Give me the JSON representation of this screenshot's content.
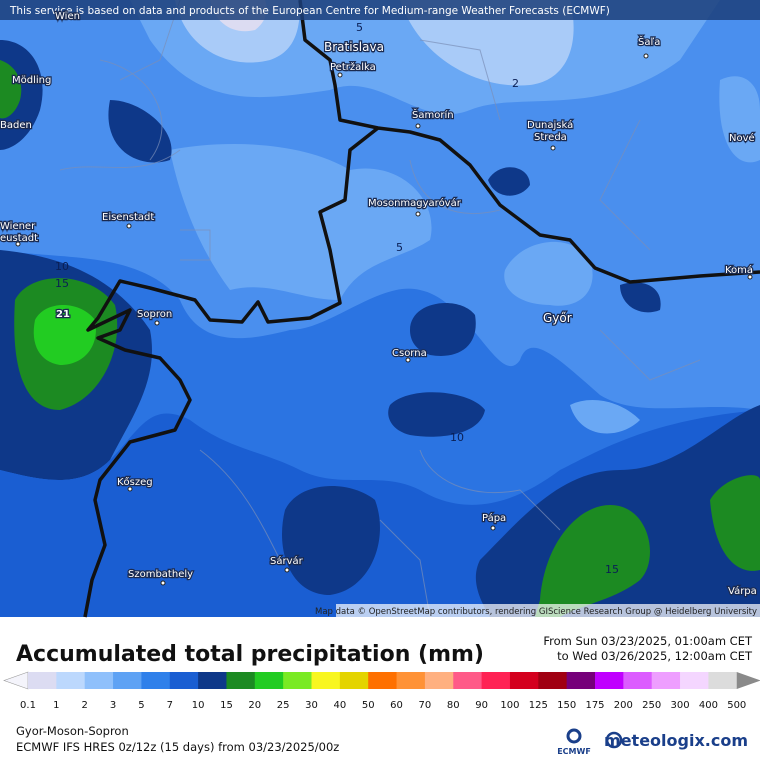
{
  "attribution": "This service is based on data and products of the European Centre for Medium-range Weather Forecasts (ECMWF)",
  "places": [
    "Wien",
    "Bratislava",
    "Petržalka",
    "Šaľa",
    "Mödling",
    "Baden",
    "Šamorín",
    "Dunajská",
    "Streda",
    "Nové",
    "Eisenstadt",
    "Mosonmagyaróvár",
    "Wiener",
    "eustadt",
    "Komá",
    "Sopron",
    "Győr",
    "Csorna",
    "Kőszeg",
    "Pápa",
    "Sárvár",
    "Szombathely",
    "Várpa"
  ],
  "contour_labels": [
    5,
    2,
    5,
    10,
    15,
    21,
    10,
    15
  ],
  "map_credit": "Map data © OpenStreetMap contributors, rendering GIScience Research Group @ Heidelberg University",
  "title": "Accumulated total precipitation (mm)",
  "period": [
    "From Sun 03/23/2025, 01:00am CET",
    "to Wed 03/26/2025, 12:00am CET"
  ],
  "legend": {
    "labels": [
      0.1,
      1,
      2,
      3,
      5,
      7,
      10,
      15,
      20,
      25,
      30,
      40,
      50,
      60,
      70,
      80,
      90,
      100,
      125,
      150,
      175,
      200,
      250,
      300,
      400,
      500
    ],
    "colors": [
      "#dcdcf2",
      "#bcd8fd",
      "#8fc0fb",
      "#5ea2f4",
      "#2f80ea",
      "#1a5ed2",
      "#0e3889",
      "#1c8a22",
      "#22cc22",
      "#7aea24",
      "#f8f620",
      "#e4d400",
      "#fe7000",
      "#ff9236",
      "#ffb080",
      "#ff5a88",
      "#ff2254",
      "#d4001e",
      "#a00012",
      "#76007a",
      "#c000ff",
      "#dc5cff",
      "#ee9eff",
      "#f4d6ff",
      "#dcdcdc"
    ]
  },
  "region": "Gyor-Moson-Sopron",
  "model": "ECMWF IFS HRES 0z/12z (15 days) from  03/23/2025/00z",
  "logos": {
    "ecmwf": "ECMWF",
    "meteologix": "meteologix.com"
  }
}
